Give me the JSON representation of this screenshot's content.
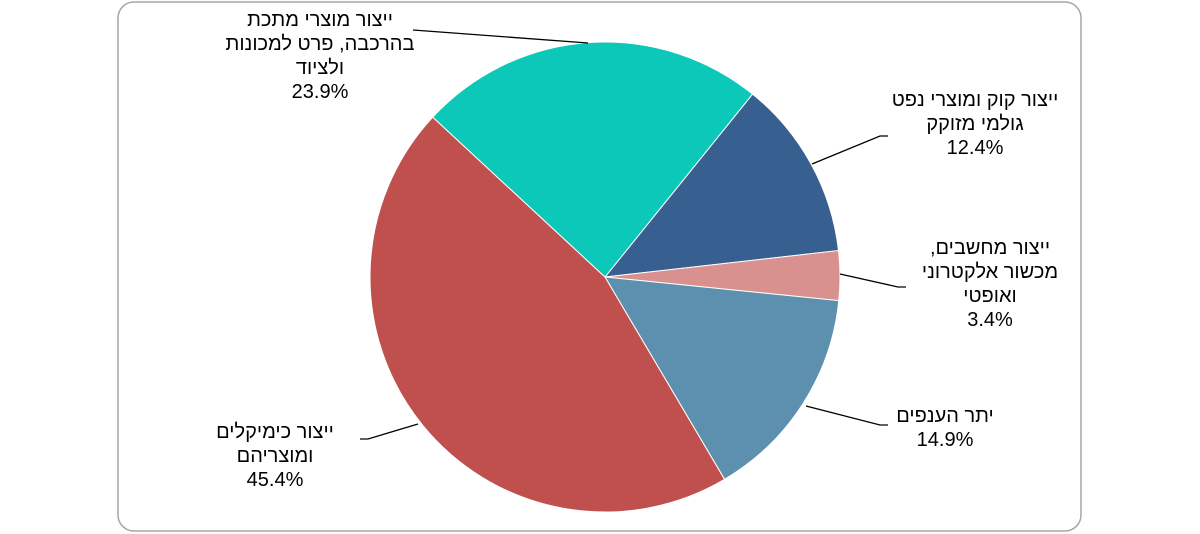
{
  "chart_data": {
    "type": "pie",
    "categories": [
      "ייצור קוק ומוצרי נפט גולמי מזוקק",
      "ייצור מחשבים, מכשור אלקטרוני ואופטי",
      "יתר הענפים",
      "ייצור כימיקלים ומוצריהם",
      "ייצור מוצרי מתכת בהרכבה, פרט למכונות ולציוד"
    ],
    "values": [
      12.4,
      3.4,
      14.9,
      45.4,
      23.9
    ],
    "value_labels": [
      "12.4%",
      "3.4%",
      "14.9%",
      "45.4%",
      "23.9%"
    ],
    "colors": [
      "#375f8f",
      "#d9918f",
      "#5d8fae",
      "#c0504d",
      "#0bc8b8"
    ]
  }
}
